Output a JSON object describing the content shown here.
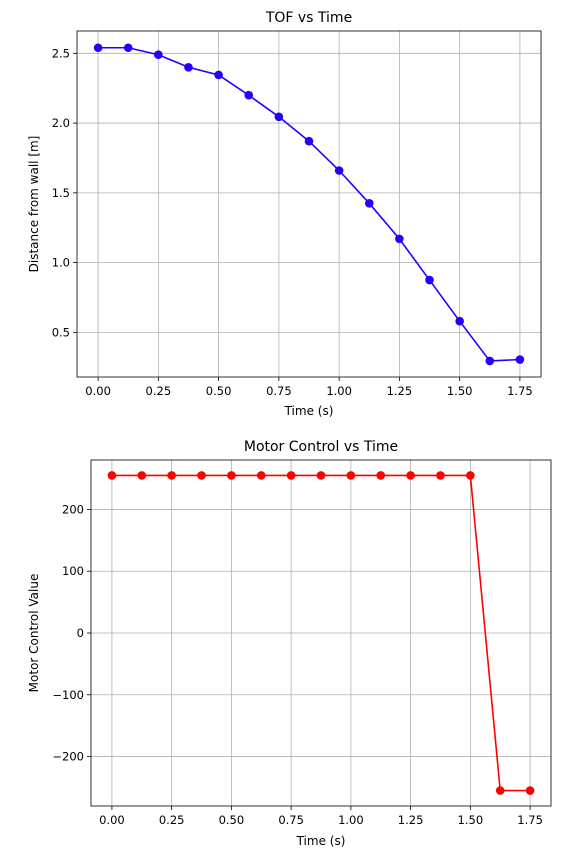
{
  "chart_data": [
    {
      "type": "line",
      "title": "TOF vs Time",
      "xlabel": "Time (s)",
      "ylabel": "Distance from wall [m]",
      "xlim": [
        -0.0875,
        1.8375
      ],
      "ylim": [
        0.18,
        2.66
      ],
      "grid": true,
      "xticks": [
        "0.00",
        "0.25",
        "0.50",
        "0.75",
        "1.00",
        "1.25",
        "1.50",
        "1.75"
      ],
      "yticks": [
        "0.5",
        "1.0",
        "1.5",
        "2.0",
        "2.5"
      ],
      "series": [
        {
          "color": "#2200ff",
          "x": [
            0,
            0.125,
            0.25,
            0.375,
            0.5,
            0.625,
            0.75,
            0.875,
            1.0,
            1.125,
            1.25,
            1.375,
            1.5,
            1.625,
            1.75
          ],
          "y": [
            2.54,
            2.54,
            2.49,
            2.4,
            2.345,
            2.2,
            2.045,
            1.87,
            1.66,
            1.425,
            1.17,
            0.875,
            0.58,
            0.295,
            0.305
          ]
        }
      ]
    },
    {
      "type": "line",
      "title": "Motor Control vs Time",
      "xlabel": "Time (s)",
      "ylabel": "Motor Control Value",
      "xlim": [
        -0.0875,
        1.8375
      ],
      "ylim": [
        -280,
        280
      ],
      "grid": true,
      "xticks": [
        "0.00",
        "0.25",
        "0.50",
        "0.75",
        "1.00",
        "1.25",
        "1.50",
        "1.75"
      ],
      "yticks": [
        "−200",
        "−100",
        "0",
        "100",
        "200"
      ],
      "series": [
        {
          "color": "#ff0000",
          "x": [
            0,
            0.125,
            0.25,
            0.375,
            0.5,
            0.625,
            0.75,
            0.875,
            1.0,
            1.125,
            1.25,
            1.375,
            1.5,
            1.625,
            1.75
          ],
          "y": [
            255,
            255,
            255,
            255,
            255,
            255,
            255,
            255,
            255,
            255,
            255,
            255,
            255,
            -255,
            -255
          ]
        }
      ]
    }
  ]
}
